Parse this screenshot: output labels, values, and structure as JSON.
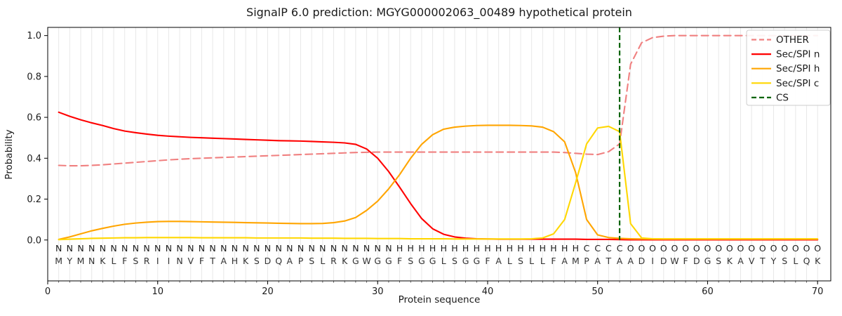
{
  "chart": {
    "title": "SignalP 6.0 prediction: MGYG000002063_00489 hypothetical protein",
    "xlabel": "Protein sequence",
    "ylabel": "Probability"
  },
  "chart_data": {
    "type": "line",
    "title": "SignalP 6.0 prediction: MGYG000002063_00489 hypothetical protein",
    "xlabel": "Protein sequence",
    "ylabel": "Probability",
    "xlim": [
      0,
      71.2
    ],
    "ylim": [
      -0.2,
      1.04
    ],
    "x_ticks": [
      0,
      10,
      20,
      30,
      40,
      50,
      60,
      70
    ],
    "y_tick_labels": [
      "0.0",
      "0.2",
      "0.4",
      "0.6",
      "0.8",
      "1.0"
    ],
    "grid": "vertical gridlines at every residue 1-70",
    "legend_position": "upper right",
    "x_start": 1,
    "x_step": 1,
    "sequence": "MYMNKLFSRIINVFTAHKSDQAPSLRKGWGGFSGGLSGGFALSLLFAMPATAADIDWFDGSKAVTYSLQK",
    "regions": "NNNNNNNNNNNNNNNNNNNNNNNNNNNNNNNHHHHHHHHHHHHHHHHHCCCCOOOOOOOOOOOOOOOOOO",
    "region_colors": {
      "N": "#ff0000",
      "H": "#ffa500",
      "C": "#ffd700",
      "O": "#a0a0a0"
    },
    "cleavage_site": {
      "name": "CS",
      "x": 52,
      "color": "#006400",
      "style": "dashed"
    },
    "series": [
      {
        "name": "OTHER",
        "color": "#f08080",
        "style": "dashed",
        "values": [
          0.365,
          0.363,
          0.363,
          0.365,
          0.368,
          0.372,
          0.376,
          0.38,
          0.384,
          0.388,
          0.392,
          0.395,
          0.398,
          0.4,
          0.402,
          0.404,
          0.406,
          0.408,
          0.41,
          0.412,
          0.414,
          0.416,
          0.418,
          0.42,
          0.422,
          0.424,
          0.426,
          0.428,
          0.429,
          0.43,
          0.43,
          0.43,
          0.43,
          0.43,
          0.43,
          0.43,
          0.43,
          0.43,
          0.43,
          0.43,
          0.43,
          0.43,
          0.43,
          0.43,
          0.43,
          0.43,
          0.428,
          0.424,
          0.42,
          0.418,
          0.432,
          0.47,
          0.86,
          0.965,
          0.99,
          0.997,
          1.0,
          1.0,
          1.0,
          1.0,
          1.0,
          1.0,
          1.0,
          1.0,
          1.0,
          1.0,
          1.0,
          1.0,
          1.0,
          1.0
        ]
      },
      {
        "name": "Sec/SPI n",
        "color": "#ff0000",
        "style": "solid",
        "values": [
          0.625,
          0.605,
          0.588,
          0.573,
          0.56,
          0.545,
          0.533,
          0.525,
          0.518,
          0.512,
          0.508,
          0.505,
          0.502,
          0.5,
          0.498,
          0.496,
          0.494,
          0.492,
          0.49,
          0.488,
          0.486,
          0.485,
          0.484,
          0.482,
          0.48,
          0.478,
          0.475,
          0.468,
          0.445,
          0.4,
          0.335,
          0.258,
          0.178,
          0.105,
          0.055,
          0.028,
          0.015,
          0.009,
          0.006,
          0.005,
          0.004,
          0.004,
          0.004,
          0.004,
          0.004,
          0.004,
          0.004,
          0.004,
          0.003,
          0.003,
          0.003,
          0.002,
          0.001,
          0.001,
          0.001,
          0.001,
          0.001,
          0.001,
          0.001,
          0.001,
          0.001,
          0.001,
          0.001,
          0.001,
          0.001,
          0.001,
          0.001,
          0.001,
          0.001,
          0.001
        ]
      },
      {
        "name": "Sec/SPI h",
        "color": "#ffa500",
        "style": "solid",
        "values": [
          0.003,
          0.015,
          0.03,
          0.045,
          0.057,
          0.068,
          0.077,
          0.083,
          0.087,
          0.09,
          0.091,
          0.091,
          0.09,
          0.089,
          0.088,
          0.087,
          0.086,
          0.085,
          0.084,
          0.083,
          0.082,
          0.081,
          0.08,
          0.08,
          0.081,
          0.085,
          0.093,
          0.11,
          0.145,
          0.19,
          0.25,
          0.32,
          0.4,
          0.468,
          0.515,
          0.542,
          0.552,
          0.557,
          0.56,
          0.561,
          0.561,
          0.561,
          0.56,
          0.558,
          0.552,
          0.53,
          0.48,
          0.33,
          0.1,
          0.025,
          0.012,
          0.008,
          0.006,
          0.005,
          0.005,
          0.005,
          0.005,
          0.005,
          0.005,
          0.005,
          0.005,
          0.005,
          0.005,
          0.005,
          0.005,
          0.005,
          0.005,
          0.005,
          0.005,
          0.005
        ]
      },
      {
        "name": "Sec/SPI c",
        "color": "#ffd700",
        "style": "solid",
        "values": [
          0.002,
          0.004,
          0.006,
          0.008,
          0.009,
          0.01,
          0.011,
          0.011,
          0.012,
          0.012,
          0.012,
          0.012,
          0.012,
          0.011,
          0.011,
          0.011,
          0.011,
          0.011,
          0.01,
          0.01,
          0.01,
          0.01,
          0.01,
          0.009,
          0.009,
          0.009,
          0.008,
          0.008,
          0.008,
          0.007,
          0.007,
          0.007,
          0.006,
          0.006,
          0.006,
          0.006,
          0.005,
          0.005,
          0.005,
          0.005,
          0.005,
          0.005,
          0.005,
          0.006,
          0.01,
          0.03,
          0.1,
          0.28,
          0.47,
          0.548,
          0.556,
          0.53,
          0.08,
          0.01,
          0.006,
          0.005,
          0.005,
          0.005,
          0.005,
          0.005,
          0.005,
          0.005,
          0.005,
          0.005,
          0.005,
          0.005,
          0.005,
          0.005,
          0.005,
          0.005
        ]
      }
    ],
    "legend_entries": [
      "OTHER",
      "Sec/SPI n",
      "Sec/SPI h",
      "Sec/SPI c",
      "CS"
    ]
  }
}
